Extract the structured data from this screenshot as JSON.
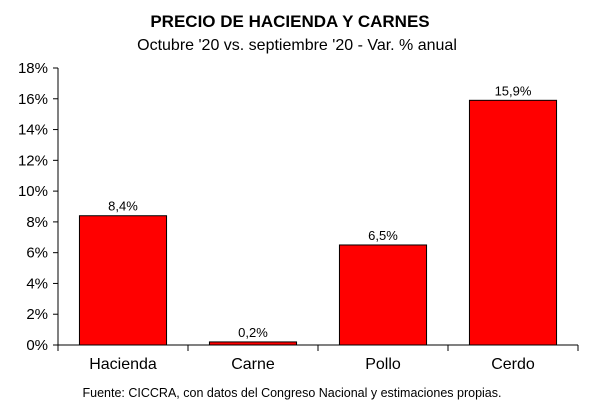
{
  "chart_data": {
    "type": "bar",
    "title": "PRECIO DE HACIENDA Y CARNES",
    "subtitle": "Octubre '20 vs. septiembre '20 - Var. % anual",
    "categories": [
      "Hacienda",
      "Carne",
      "Pollo",
      "Cerdo"
    ],
    "values": [
      8.4,
      0.2,
      6.5,
      15.9
    ],
    "data_labels": [
      "8,4%",
      "0,2%",
      "6,5%",
      "15,9%"
    ],
    "ylim": [
      0,
      18
    ],
    "yticks": [
      0,
      2,
      4,
      6,
      8,
      10,
      12,
      14,
      16,
      18
    ],
    "ytick_labels": [
      "0%",
      "2%",
      "4%",
      "6%",
      "8%",
      "10%",
      "12%",
      "14%",
      "16%",
      "18%"
    ],
    "xlabel": "",
    "ylabel": "",
    "grid": false,
    "bar_color": "#ff0000",
    "bar_edge_color": "#000000",
    "source": "Fuente: CICCRA, con datos del Congreso Nacional y estimaciones propias."
  }
}
